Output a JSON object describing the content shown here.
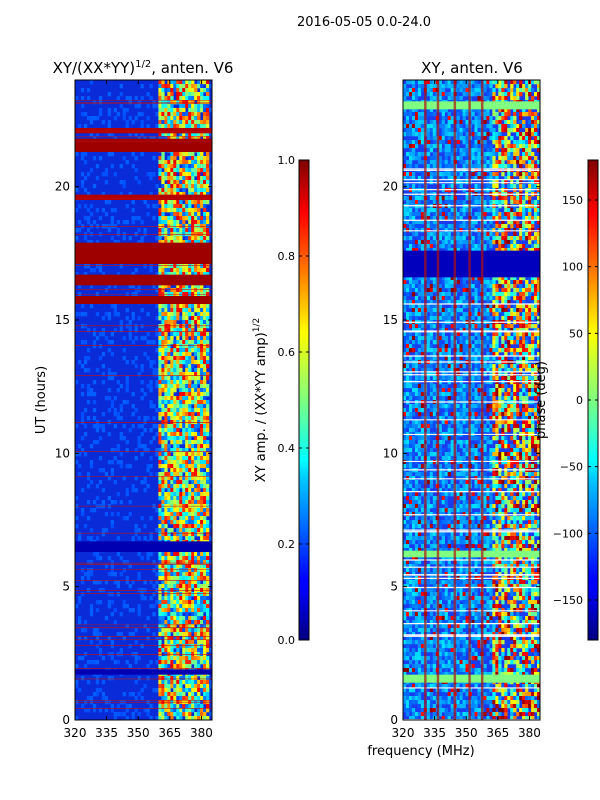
{
  "suptitle": "2016-05-05 0.0-24.0",
  "xlabel_shared": "frequency (MHz)",
  "chart_data": [
    {
      "type": "heatmap",
      "title_main": "XY/(XX*YY)",
      "title_exp": "1/2",
      "title_suffix": ", anten. V6",
      "xlabel": "",
      "ylabel": "UT (hours)",
      "xlim": [
        320,
        385
      ],
      "ylim": [
        0,
        24
      ],
      "xticks": [
        320,
        335,
        350,
        365,
        380
      ],
      "yticks": [
        0,
        5,
        10,
        15,
        20
      ],
      "colorbar": {
        "label_main": "XY amp. / (XX*YY amp)",
        "label_exp": "1/2",
        "range": [
          0.0,
          1.0
        ],
        "ticks": [
          "0.0",
          "0.2",
          "0.4",
          "0.6",
          "0.8",
          "1.0"
        ],
        "tick_values": [
          0.0,
          0.2,
          0.4,
          0.6,
          0.8,
          1.0
        ]
      }
    },
    {
      "type": "heatmap",
      "title": "XY, anten. V6",
      "xlabel": "frequency (MHz)",
      "ylabel": "",
      "xlim": [
        320,
        385
      ],
      "ylim": [
        0,
        24
      ],
      "xticks": [
        320,
        335,
        350,
        365,
        380
      ],
      "yticks": [
        0,
        5,
        10,
        15,
        20
      ],
      "colorbar": {
        "label": "phase (deg)",
        "range": [
          -180,
          180
        ],
        "ticks": [
          "−150",
          "−100",
          "−50",
          "0",
          "50",
          "100",
          "150"
        ],
        "tick_values": [
          -150,
          -100,
          -50,
          0,
          50,
          100,
          150
        ]
      }
    }
  ]
}
